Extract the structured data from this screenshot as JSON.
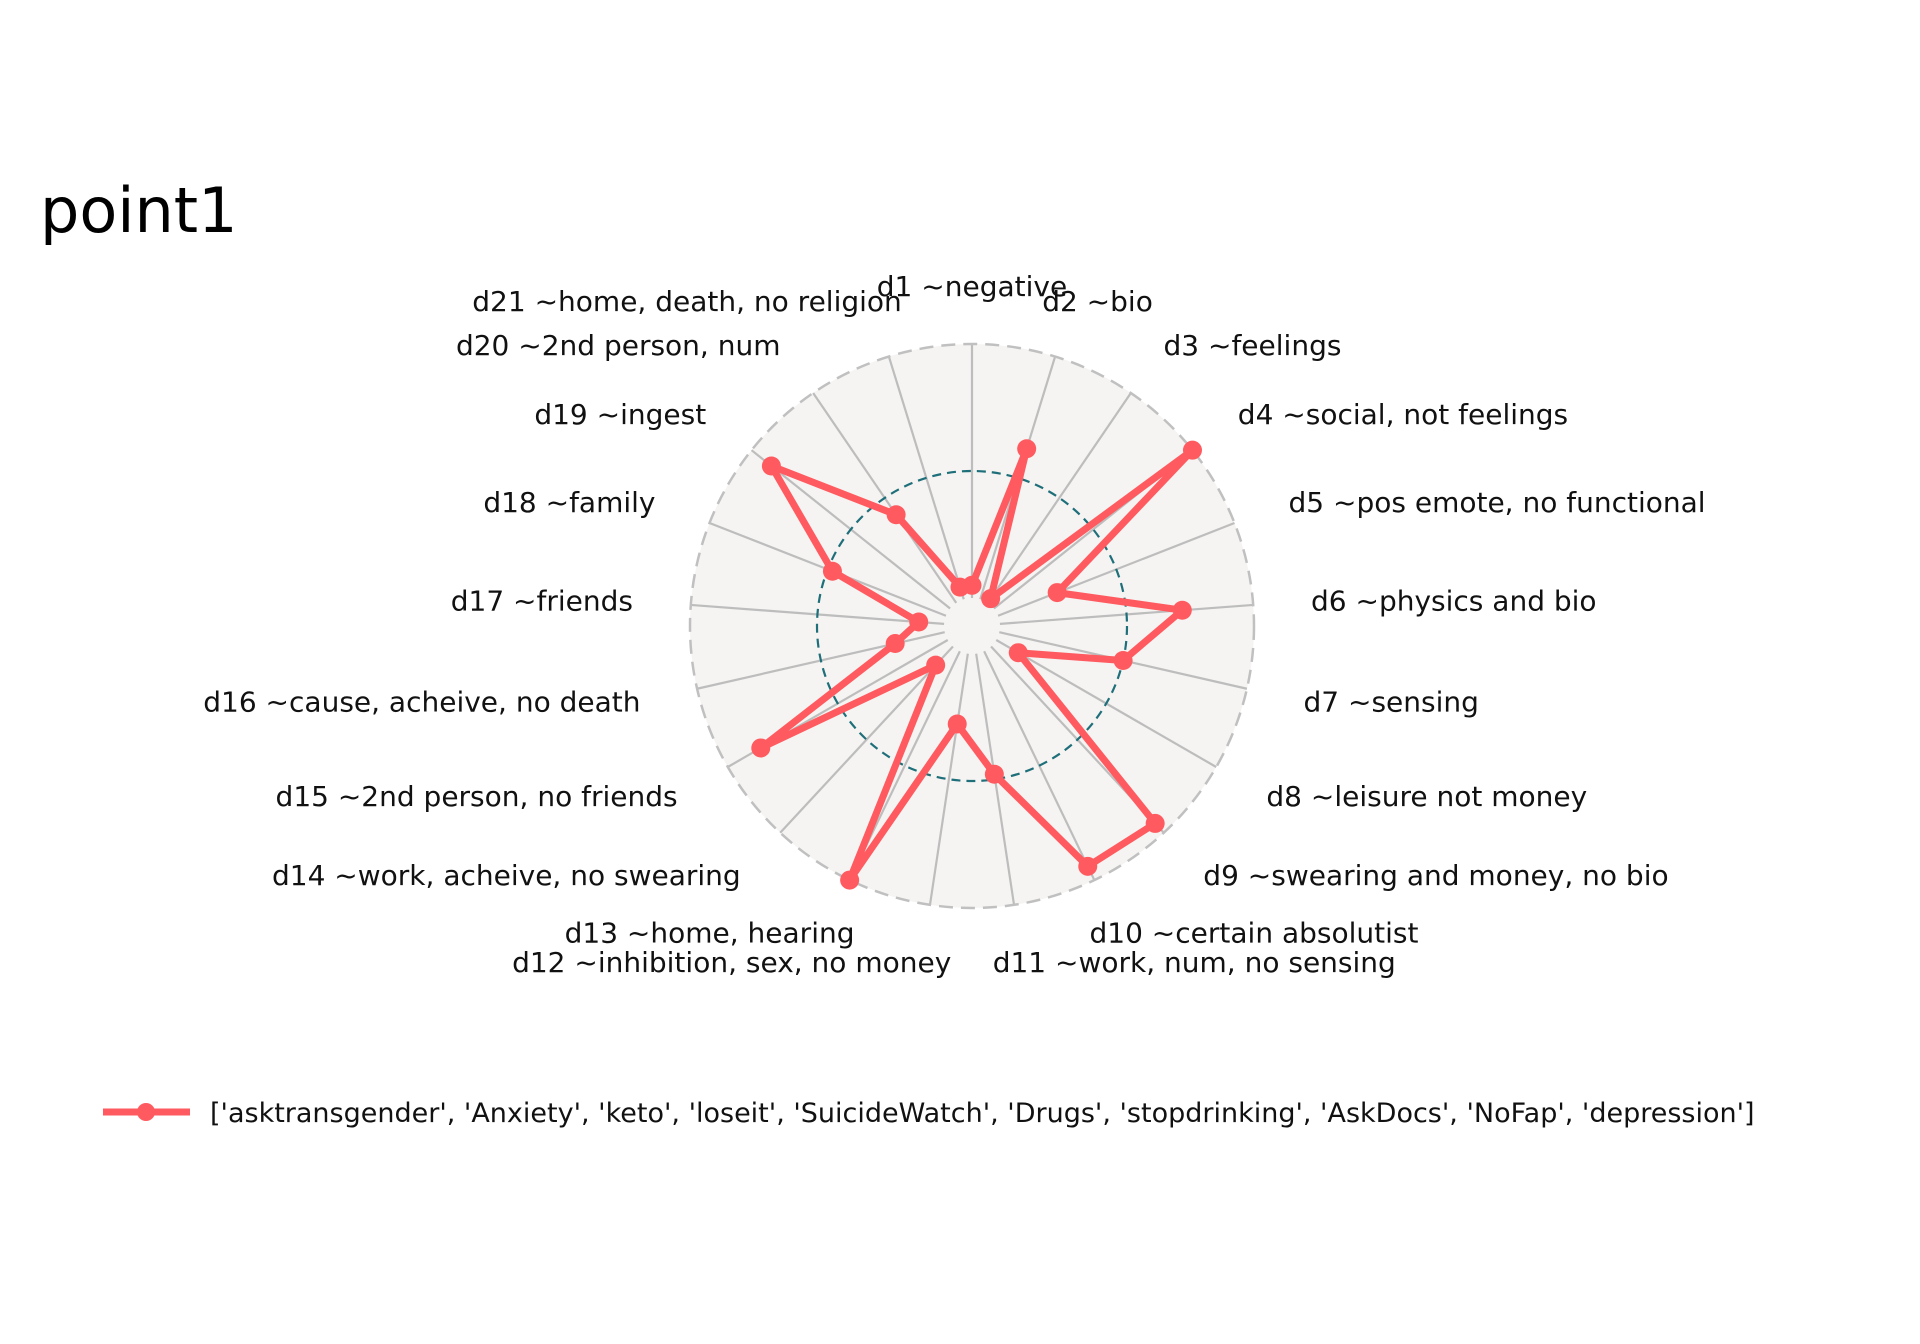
{
  "chart_data": {
    "type": "radar",
    "title": "point1",
    "categories": [
      "d1 ~negative",
      "d2 ~bio",
      "d3 ~feelings",
      "d4 ~social, not feelings",
      "d5 ~pos emote, no functional",
      "d6 ~physics and bio",
      "d7 ~sensing",
      "d8 ~leisure not money",
      "d9 ~swearing and money, no bio",
      "d10 ~certain absolutist",
      "d11 ~work, num, no sensing",
      "d12 ~inhibition, sex, no money",
      "d13 ~home, hearing",
      "d14 ~work, acheive, no swearing",
      "d15 ~2nd person, no friends",
      "d16 ~cause, acheive, no death",
      "d17 ~friends",
      "d18 ~family",
      "d19 ~ingest",
      "d20 ~2nd person, num",
      "d21 ~home, death, no religion"
    ],
    "rlim": [
      0,
      1
    ],
    "reference_circle": 0.5,
    "series": [
      {
        "name": "['asktransgender', 'Anxiety', 'keto', 'loseit', 'SuicideWatch', 'Drugs', 'stopdrinking', 'AskDocs', 'NoFap', 'depression']",
        "color": "#ff5a5f",
        "values": [
          0.05,
          0.62,
          0.02,
          1.0,
          0.25,
          0.72,
          0.5,
          0.1,
          0.95,
          0.94,
          0.48,
          0.28,
          1.0,
          0.1,
          0.85,
          0.2,
          0.1,
          0.48,
          0.9,
          0.42,
          0.05
        ]
      }
    ],
    "grid": true,
    "legend_position": "bottom"
  },
  "colors": {
    "plot_background": "#f5f4f2",
    "spoke": "#bdbdbd",
    "outer_ring": "#c0c0c0",
    "reference_ring": "#1f6f7a"
  }
}
